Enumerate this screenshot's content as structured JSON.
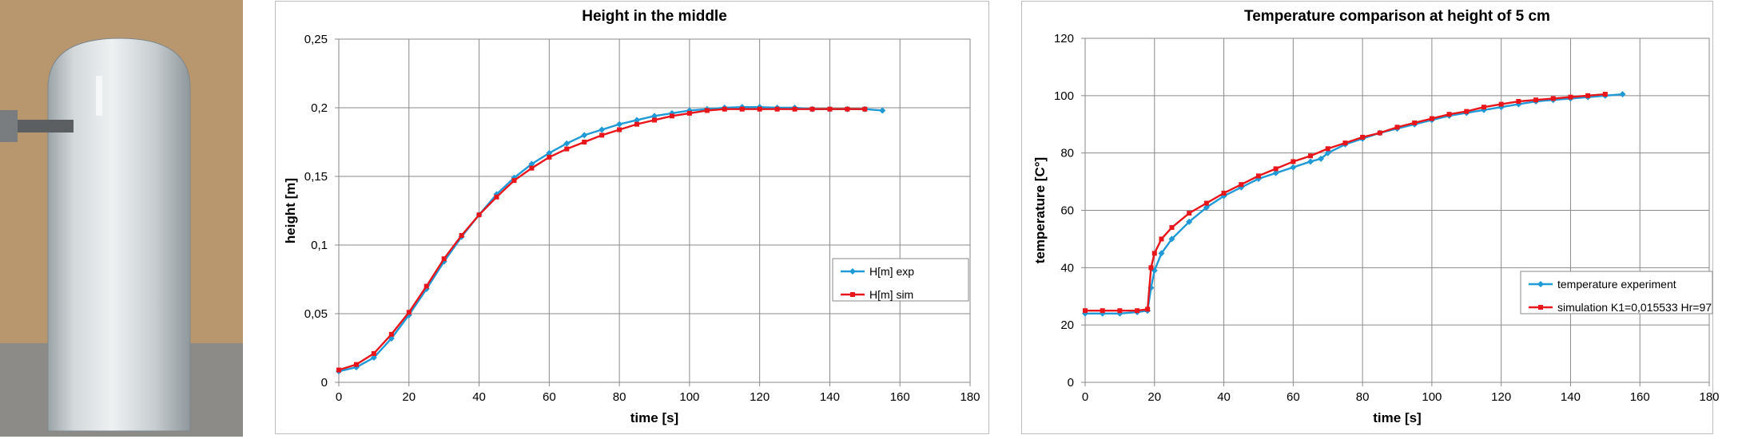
{
  "chart_data": [
    {
      "type": "line",
      "title": "Height in the middle",
      "xlabel": "time [s]",
      "ylabel": "height [m]",
      "xlim": [
        0,
        180
      ],
      "ylim": [
        0,
        0.25
      ],
      "x_ticks": [
        "0",
        "20",
        "40",
        "60",
        "80",
        "100",
        "120",
        "140",
        "160",
        "180"
      ],
      "y_ticks": [
        "0",
        "0,05",
        "0,1",
        "0,15",
        "0,2",
        "0,25"
      ],
      "grid": true,
      "legend_position": "right-middle",
      "series": [
        {
          "name": "H[m] exp",
          "color": "#1f9ad6",
          "marker": "diamond",
          "points": [
            [
              0,
              0.008
            ],
            [
              5,
              0.011
            ],
            [
              10,
              0.018
            ],
            [
              15,
              0.032
            ],
            [
              20,
              0.049
            ],
            [
              25,
              0.068
            ],
            [
              30,
              0.088
            ],
            [
              35,
              0.106
            ],
            [
              40,
              0.122
            ],
            [
              45,
              0.137
            ],
            [
              50,
              0.149
            ],
            [
              55,
              0.159
            ],
            [
              60,
              0.167
            ],
            [
              65,
              0.174
            ],
            [
              70,
              0.18
            ],
            [
              75,
              0.184
            ],
            [
              80,
              0.188
            ],
            [
              85,
              0.191
            ],
            [
              90,
              0.194
            ],
            [
              95,
              0.196
            ],
            [
              100,
              0.198
            ],
            [
              105,
              0.199
            ],
            [
              110,
              0.2
            ],
            [
              115,
              0.2005
            ],
            [
              120,
              0.2005
            ],
            [
              125,
              0.2
            ],
            [
              130,
              0.2
            ],
            [
              135,
              0.199
            ],
            [
              140,
              0.199
            ],
            [
              145,
              0.199
            ],
            [
              150,
              0.199
            ],
            [
              155,
              0.198
            ]
          ]
        },
        {
          "name": "H[m] sim",
          "color": "#e8161b",
          "marker": "square",
          "points": [
            [
              0,
              0.009
            ],
            [
              5,
              0.013
            ],
            [
              10,
              0.021
            ],
            [
              15,
              0.035
            ],
            [
              20,
              0.051
            ],
            [
              25,
              0.07
            ],
            [
              30,
              0.09
            ],
            [
              35,
              0.107
            ],
            [
              40,
              0.122
            ],
            [
              45,
              0.135
            ],
            [
              50,
              0.147
            ],
            [
              55,
              0.156
            ],
            [
              60,
              0.164
            ],
            [
              65,
              0.17
            ],
            [
              70,
              0.175
            ],
            [
              75,
              0.18
            ],
            [
              80,
              0.184
            ],
            [
              85,
              0.188
            ],
            [
              90,
              0.191
            ],
            [
              95,
              0.194
            ],
            [
              100,
              0.196
            ],
            [
              105,
              0.198
            ],
            [
              110,
              0.199
            ],
            [
              115,
              0.199
            ],
            [
              120,
              0.199
            ],
            [
              125,
              0.199
            ],
            [
              130,
              0.199
            ],
            [
              135,
              0.199
            ],
            [
              140,
              0.199
            ],
            [
              145,
              0.199
            ],
            [
              150,
              0.199
            ]
          ]
        }
      ]
    },
    {
      "type": "line",
      "title": "Temperature comparison at height of 5 cm",
      "xlabel": "time [s]",
      "ylabel": "temperature [C°]",
      "xlim": [
        0,
        180
      ],
      "ylim": [
        0,
        120
      ],
      "x_ticks": [
        "0",
        "20",
        "40",
        "60",
        "80",
        "100",
        "120",
        "140",
        "160",
        "180"
      ],
      "y_ticks": [
        "0",
        "20",
        "40",
        "60",
        "80",
        "100",
        "120"
      ],
      "grid": true,
      "legend_position": "right-lower",
      "series": [
        {
          "name": "temperature experiment",
          "color": "#1f9ad6",
          "marker": "diamond",
          "points": [
            [
              0,
              24
            ],
            [
              5,
              24
            ],
            [
              10,
              24
            ],
            [
              15,
              24.5
            ],
            [
              18,
              25
            ],
            [
              19,
              33
            ],
            [
              20,
              39
            ],
            [
              22,
              45
            ],
            [
              25,
              50
            ],
            [
              30,
              56
            ],
            [
              35,
              61
            ],
            [
              40,
              65
            ],
            [
              45,
              68
            ],
            [
              50,
              71
            ],
            [
              55,
              73
            ],
            [
              60,
              75
            ],
            [
              65,
              77
            ],
            [
              68,
              78
            ],
            [
              70,
              80
            ],
            [
              75,
              83
            ],
            [
              80,
              85
            ],
            [
              85,
              87
            ],
            [
              90,
              88.5
            ],
            [
              95,
              90
            ],
            [
              100,
              91.5
            ],
            [
              105,
              93
            ],
            [
              110,
              94
            ],
            [
              115,
              95
            ],
            [
              120,
              96
            ],
            [
              125,
              97
            ],
            [
              130,
              98
            ],
            [
              135,
              98.5
            ],
            [
              140,
              99
            ],
            [
              145,
              99.5
            ],
            [
              150,
              100
            ],
            [
              155,
              100.5
            ]
          ]
        },
        {
          "name": "simulation K1=0,015533 Hr=97",
          "color": "#e8161b",
          "marker": "square",
          "points": [
            [
              0,
              25
            ],
            [
              5,
              25
            ],
            [
              10,
              25
            ],
            [
              15,
              25
            ],
            [
              18,
              25.5
            ],
            [
              19,
              40
            ],
            [
              20,
              45
            ],
            [
              22,
              50
            ],
            [
              25,
              54
            ],
            [
              30,
              59
            ],
            [
              35,
              62.5
            ],
            [
              40,
              66
            ],
            [
              45,
              69
            ],
            [
              50,
              72
            ],
            [
              55,
              74.5
            ],
            [
              60,
              77
            ],
            [
              65,
              79
            ],
            [
              70,
              81.5
            ],
            [
              75,
              83.5
            ],
            [
              80,
              85.5
            ],
            [
              85,
              87
            ],
            [
              90,
              89
            ],
            [
              95,
              90.5
            ],
            [
              100,
              92
            ],
            [
              105,
              93.5
            ],
            [
              110,
              94.5
            ],
            [
              115,
              96
            ],
            [
              120,
              97
            ],
            [
              125,
              98
            ],
            [
              130,
              98.5
            ],
            [
              135,
              99
            ],
            [
              140,
              99.5
            ],
            [
              145,
              100
            ],
            [
              150,
              100.5
            ]
          ]
        }
      ]
    }
  ]
}
